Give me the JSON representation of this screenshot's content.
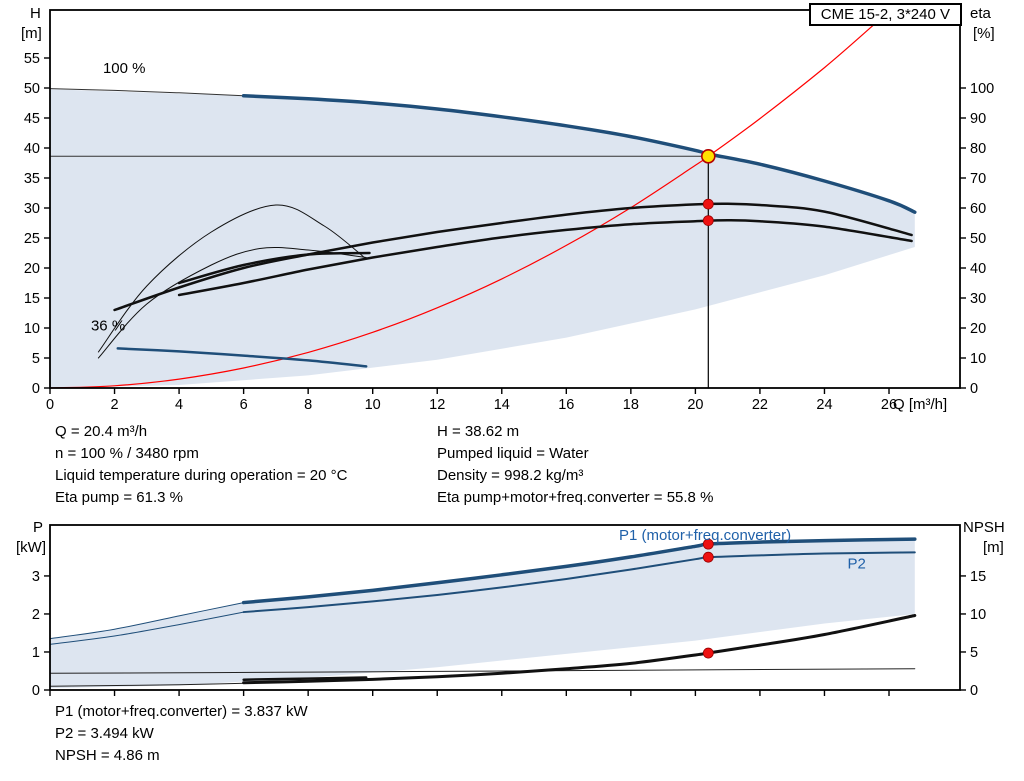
{
  "title_box": "CME 15-2, 3*240 V",
  "colors": {
    "curve_blue": "#1f4e79",
    "label_blue": "#2061a9",
    "system_red": "#ff0000",
    "marker_red": "#ee1111",
    "marker_yellow": "#ffe100",
    "envelope_fill": "#d9e2ee"
  },
  "results_top": {
    "left": [
      "Q = 20.4 m³/h",
      "n = 100 % / 3480 rpm",
      "Liquid temperature during operation = 20 °C",
      "Eta pump = 61.3 %"
    ],
    "right": [
      "H = 38.62 m",
      "Pumped liquid = Water",
      "Density = 998.2 kg/m³",
      "Eta pump+motor+freq.converter = 55.8 %"
    ]
  },
  "results_bottom": [
    "P1 (motor+freq.converter) = 3.837 kW",
    "P2 = 3.494 kW",
    "NPSH = 4.86 m"
  ],
  "chart_data": [
    {
      "type": "line",
      "name": "qh-performance",
      "xlabel": "Q [m³/h]",
      "ylabel_lines": [
        "H",
        "[m]"
      ],
      "y2label_lines": [
        "eta",
        "[%]"
      ],
      "xlim": [
        0,
        28.2
      ],
      "ylim": [
        0,
        63
      ],
      "y2lim": [
        0,
        126
      ],
      "xticks": [
        0,
        2,
        4,
        6,
        8,
        10,
        12,
        14,
        16,
        18,
        20,
        22,
        24,
        26
      ],
      "yticks": [
        0,
        5,
        10,
        15,
        20,
        25,
        30,
        35,
        40,
        45,
        50,
        55
      ],
      "y2ticks": [
        0,
        10,
        20,
        30,
        40,
        50,
        60,
        70,
        80,
        90,
        100
      ],
      "show_x_labels": true,
      "regions": [
        {
          "name": "operating-envelope",
          "axis": "y",
          "fill": "#d9e2ee",
          "opacity": 0.9,
          "points": [
            [
              0,
              0
            ],
            [
              0,
              49.8
            ],
            [
              6,
              48.7
            ],
            [
              8,
              48.2
            ],
            [
              10,
              47.5
            ],
            [
              12,
              46.5
            ],
            [
              14,
              45.2
            ],
            [
              16,
              43.7
            ],
            [
              18,
              41.9
            ],
            [
              20,
              39.6
            ],
            [
              22,
              37.3
            ],
            [
              24,
              34.5
            ],
            [
              26,
              31.2
            ],
            [
              26.8,
              29.3
            ],
            [
              26.8,
              23.5
            ],
            [
              24,
              18.8
            ],
            [
              20,
              13.1
            ],
            [
              16,
              8.4
            ],
            [
              12,
              4.7
            ],
            [
              8,
              2.1
            ],
            [
              4,
              0.5
            ],
            [
              0,
              0
            ]
          ]
        }
      ],
      "series": [
        {
          "name": "system-curve",
          "axis": "y",
          "color": "#ff0000",
          "width": 1.2,
          "points": [
            [
              0,
              0
            ],
            [
              2,
              0.37
            ],
            [
              4,
              1.48
            ],
            [
              6,
              3.34
            ],
            [
              8,
              5.94
            ],
            [
              10,
              9.28
            ],
            [
              12,
              13.36
            ],
            [
              14,
              18.19
            ],
            [
              16,
              23.76
            ],
            [
              18,
              30.06
            ],
            [
              20,
              37.12
            ],
            [
              20.4,
              38.62
            ],
            [
              22,
              44.9
            ],
            [
              24,
              53.4
            ],
            [
              25.5,
              60.4
            ]
          ]
        },
        {
          "name": "duty-hline",
          "axis": "y",
          "color": "#333333",
          "width": 1,
          "points": [
            [
              0,
              38.62
            ],
            [
              20.4,
              38.62
            ]
          ]
        },
        {
          "name": "duty-vline",
          "axis": "y",
          "color": "#000000",
          "width": 1.2,
          "points": [
            [
              20.4,
              0
            ],
            [
              20.4,
              39.3
            ]
          ]
        },
        {
          "name": "speed-line-100",
          "axis": "y",
          "color": "#333333",
          "width": 1,
          "points": [
            [
              0,
              49.9
            ],
            [
              2,
              49.6
            ],
            [
              4,
              49.2
            ],
            [
              6,
              48.7
            ]
          ]
        },
        {
          "name": "pump-curve-100",
          "axis": "y",
          "color": "#1f4e79",
          "width": 3.5,
          "points": [
            [
              6,
              48.7
            ],
            [
              8,
              48.2
            ],
            [
              10,
              47.5
            ],
            [
              12,
              46.5
            ],
            [
              14,
              45.2
            ],
            [
              16,
              43.7
            ],
            [
              18,
              41.9
            ],
            [
              20,
              39.6
            ],
            [
              20.4,
              39.0
            ],
            [
              22,
              37.3
            ],
            [
              24,
              34.5
            ],
            [
              26,
              31.2
            ],
            [
              26.8,
              29.3
            ]
          ]
        },
        {
          "name": "speed-curve-36",
          "axis": "y",
          "color": "#1f4e79",
          "width": 2.5,
          "points": [
            [
              2.1,
              6.6
            ],
            [
              4,
              6.1
            ],
            [
              6,
              5.4
            ],
            [
              8,
              4.6
            ],
            [
              9.8,
              3.6
            ]
          ]
        },
        {
          "name": "eta-curve-36-a",
          "axis": "y2",
          "color": "#111111",
          "width": 1,
          "points": [
            [
              1.5,
              12
            ],
            [
              3,
              34
            ],
            [
              5,
              52
            ],
            [
              7,
              61
            ],
            [
              8.5,
              54
            ],
            [
              9.8,
              43
            ]
          ]
        },
        {
          "name": "eta-curve-36-b",
          "axis": "y2",
          "color": "#111111",
          "width": 1,
          "points": [
            [
              1.5,
              10
            ],
            [
              3,
              28
            ],
            [
              5,
              41
            ],
            [
              6.5,
              46.5
            ],
            [
              8,
              46
            ],
            [
              9.8,
              43.5
            ]
          ]
        },
        {
          "name": "eta-curve-36-c",
          "axis": "y2",
          "color": "#111111",
          "width": 2.5,
          "points": [
            [
              4,
              35
            ],
            [
              6,
              41
            ],
            [
              8,
              44.5
            ],
            [
              9.9,
              45
            ]
          ]
        },
        {
          "name": "eta-pump-curve",
          "axis": "y2",
          "color": "#111111",
          "width": 2.5,
          "points": [
            [
              2,
              26
            ],
            [
              4,
              33.5
            ],
            [
              6,
              40
            ],
            [
              8,
              44.5
            ],
            [
              10,
              48.5
            ],
            [
              12,
              52
            ],
            [
              14,
              55
            ],
            [
              16,
              57.8
            ],
            [
              18,
              60
            ],
            [
              20,
              61.2
            ],
            [
              21,
              61.4
            ],
            [
              22,
              61
            ],
            [
              24,
              58.8
            ],
            [
              26.7,
              51
            ]
          ]
        },
        {
          "name": "eta-total-curve",
          "axis": "y2",
          "color": "#111111",
          "width": 2.5,
          "points": [
            [
              4,
              31
            ],
            [
              6,
              35
            ],
            [
              8,
              39.5
            ],
            [
              10,
              43.5
            ],
            [
              12,
              47
            ],
            [
              14,
              50.2
            ],
            [
              16,
              52.7
            ],
            [
              18,
              54.6
            ],
            [
              20,
              55.6
            ],
            [
              21,
              55.9
            ],
            [
              22,
              55.6
            ],
            [
              24,
              53.8
            ],
            [
              26.7,
              49
            ]
          ]
        }
      ],
      "markers": [
        {
          "name": "eta-pump-point",
          "x": 20.4,
          "y": 61.3,
          "axis": "y2",
          "style": "dot"
        },
        {
          "name": "eta-total-point",
          "x": 20.4,
          "y": 55.8,
          "axis": "y2",
          "style": "dot"
        },
        {
          "name": "duty-point",
          "x": 20.4,
          "y": 38.62,
          "axis": "y",
          "style": "duty"
        }
      ],
      "annotations": [
        {
          "text": "100 %",
          "x": 2.3,
          "y": 52.5,
          "anchor": "middle",
          "color": "#000000"
        },
        {
          "text": "36 %",
          "x": 1.8,
          "y": 9.6,
          "anchor": "middle",
          "color": "#000000"
        }
      ]
    },
    {
      "type": "line",
      "name": "power-npsh",
      "xlabel": "",
      "ylabel_lines": [
        "P",
        "[kW]"
      ],
      "y2label_lines": [
        "NPSH",
        "[m]"
      ],
      "xlim": [
        0,
        28.2
      ],
      "ylim": [
        0,
        4.34
      ],
      "y2lim": [
        0,
        21.7
      ],
      "xticks": [
        0,
        2,
        4,
        6,
        8,
        10,
        12,
        14,
        16,
        18,
        20,
        22,
        24,
        26
      ],
      "yticks": [
        0,
        1,
        2,
        3
      ],
      "y2ticks": [
        0,
        5,
        10,
        15
      ],
      "show_x_labels": false,
      "regions": [
        {
          "name": "power-envelope",
          "axis": "y",
          "fill": "#d9e2ee",
          "opacity": 0.9,
          "points": [
            [
              0,
              0.05
            ],
            [
              0,
              1.35
            ],
            [
              2,
              1.6
            ],
            [
              4,
              1.95
            ],
            [
              6,
              2.3
            ],
            [
              8,
              2.45
            ],
            [
              10,
              2.62
            ],
            [
              12,
              2.82
            ],
            [
              14,
              3.03
            ],
            [
              16,
              3.25
            ],
            [
              18,
              3.5
            ],
            [
              20,
              3.78
            ],
            [
              22,
              3.89
            ],
            [
              24,
              3.93
            ],
            [
              26.8,
              3.97
            ],
            [
              26.8,
              2.0
            ],
            [
              24,
              1.75
            ],
            [
              20,
              1.3
            ],
            [
              16,
              0.95
            ],
            [
              12,
              0.6
            ],
            [
              8,
              0.32
            ],
            [
              4,
              0.12
            ],
            [
              0,
              0.05
            ]
          ]
        }
      ],
      "series": [
        {
          "name": "p1-extension",
          "axis": "y",
          "color": "#1f4e79",
          "width": 1,
          "points": [
            [
              0,
              1.35
            ],
            [
              2,
              1.6
            ],
            [
              4,
              1.95
            ],
            [
              6,
              2.3
            ]
          ]
        },
        {
          "name": "p2-extension",
          "axis": "y",
          "color": "#1f4e79",
          "width": 1,
          "points": [
            [
              0,
              1.2
            ],
            [
              2,
              1.42
            ],
            [
              4,
              1.72
            ],
            [
              6,
              2.05
            ]
          ]
        },
        {
          "name": "p1-curve",
          "axis": "y",
          "color": "#1f4e79",
          "width": 3.5,
          "points": [
            [
              6,
              2.3
            ],
            [
              8,
              2.45
            ],
            [
              10,
              2.62
            ],
            [
              12,
              2.82
            ],
            [
              14,
              3.03
            ],
            [
              16,
              3.25
            ],
            [
              18,
              3.5
            ],
            [
              20,
              3.78
            ],
            [
              20.4,
              3.84
            ],
            [
              22,
              3.89
            ],
            [
              24,
              3.93
            ],
            [
              26.8,
              3.97
            ]
          ]
        },
        {
          "name": "p2-curve",
          "axis": "y",
          "color": "#1f4e79",
          "width": 2,
          "points": [
            [
              6,
              2.05
            ],
            [
              8,
              2.18
            ],
            [
              10,
              2.33
            ],
            [
              12,
              2.5
            ],
            [
              14,
              2.7
            ],
            [
              16,
              2.92
            ],
            [
              18,
              3.17
            ],
            [
              20,
              3.44
            ],
            [
              20.4,
              3.49
            ],
            [
              22,
              3.54
            ],
            [
              24,
              3.59
            ],
            [
              26.8,
              3.62
            ]
          ]
        },
        {
          "name": "power-36-line",
          "axis": "y",
          "color": "#222222",
          "width": 1,
          "points": [
            [
              0,
              0.44
            ],
            [
              8,
              0.47
            ],
            [
              16,
              0.51
            ],
            [
              26.8,
              0.56
            ]
          ]
        },
        {
          "name": "power-36-a",
          "axis": "y",
          "color": "#222222",
          "width": 1,
          "points": [
            [
              0,
              0.1
            ],
            [
              4,
              0.14
            ],
            [
              8,
              0.22
            ],
            [
              9.8,
              0.26
            ]
          ]
        },
        {
          "name": "power-36-b",
          "axis": "y",
          "color": "#111111",
          "width": 2.5,
          "points": [
            [
              6,
              0.27
            ],
            [
              8,
              0.3
            ],
            [
              9.8,
              0.33
            ]
          ]
        },
        {
          "name": "npsh-curve",
          "axis": "y2",
          "color": "#111111",
          "width": 3,
          "points": [
            [
              6,
              0.95
            ],
            [
              8,
              1.15
            ],
            [
              10,
              1.4
            ],
            [
              12,
              1.75
            ],
            [
              14,
              2.2
            ],
            [
              16,
              2.8
            ],
            [
              18,
              3.5
            ],
            [
              20,
              4.6
            ],
            [
              20.4,
              4.86
            ],
            [
              22,
              5.9
            ],
            [
              24,
              7.3
            ],
            [
              26.8,
              9.8
            ]
          ]
        }
      ],
      "markers": [
        {
          "name": "p1-point",
          "x": 20.4,
          "y": 3.837,
          "axis": "y",
          "style": "dot"
        },
        {
          "name": "p2-point",
          "x": 20.4,
          "y": 3.494,
          "axis": "y",
          "style": "dot"
        },
        {
          "name": "npsh-point",
          "x": 20.4,
          "y": 4.86,
          "axis": "y2",
          "style": "dot"
        }
      ],
      "annotations": [
        {
          "text": "P1 (motor+freq.converter)",
          "x": 20.3,
          "y": 3.95,
          "anchor": "middle",
          "color": "#2061a9"
        },
        {
          "text": "P2",
          "x": 25.0,
          "y": 3.2,
          "anchor": "middle",
          "color": "#2061a9"
        }
      ]
    }
  ]
}
